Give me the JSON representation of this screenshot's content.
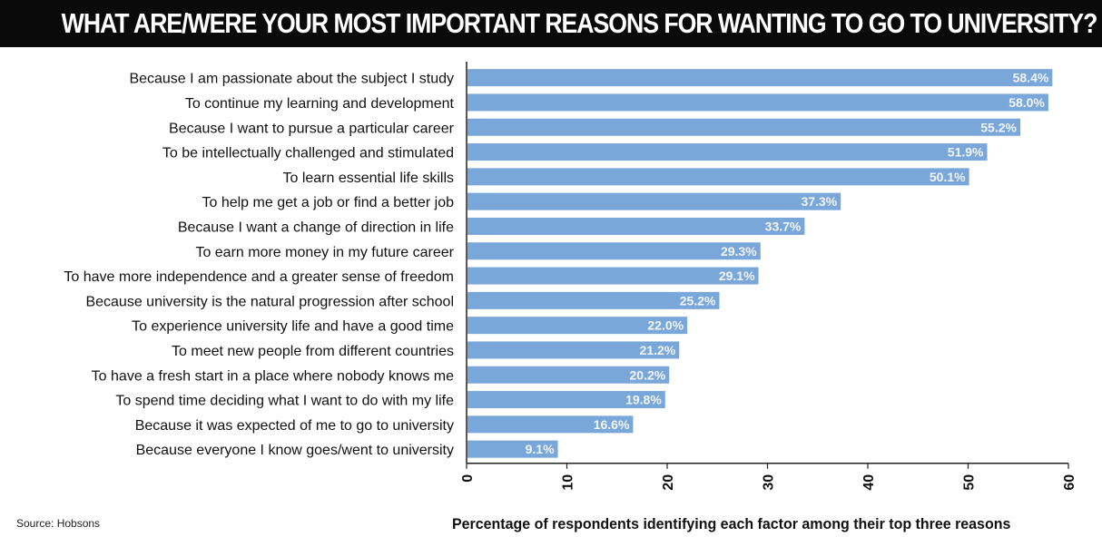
{
  "title": "WHAT ARE/WERE YOUR MOST IMPORTANT REASONS FOR WANTING TO GO TO UNIVERSITY?",
  "source": "Source: Hobsons",
  "colors": {
    "bar": "#7aa7d9",
    "bar_label": "#f2f6fb",
    "title_bg": "#0a0a0a",
    "axis": "#222222"
  },
  "chart_data": {
    "type": "bar",
    "orientation": "horizontal",
    "title": "WHAT ARE/WERE YOUR MOST IMPORTANT REASONS FOR WANTING TO GO TO UNIVERSITY?",
    "xlabel": "Percentage of respondents identifying each factor among their top three reasons",
    "ylabel": "",
    "xlim": [
      0,
      60
    ],
    "xticks": [
      0,
      10,
      20,
      30,
      40,
      50,
      60
    ],
    "grid": false,
    "categories": [
      "Because I am passionate about the subject I study",
      "To continue my learning and development",
      "Because I want to pursue a particular career",
      "To be intellectually challenged and stimulated",
      "To learn essential life skills",
      "To help me get a job or find a better job",
      "Because I want a change of direction in life",
      "To earn more money in my future career",
      "To have more independence and a greater sense of freedom",
      "Because university is the natural progression after school",
      "To experience university life and have a good time",
      "To meet new people from different countries",
      "To have a fresh start in a place where nobody knows me",
      "To spend time deciding what I want to do with my life",
      "Because it was expected of me to go to university",
      "Because everyone I know goes/went to university"
    ],
    "values": [
      58.4,
      58.0,
      55.2,
      51.9,
      50.1,
      37.3,
      33.7,
      29.3,
      29.1,
      25.2,
      22.0,
      21.2,
      20.2,
      19.8,
      16.6,
      9.1
    ],
    "labels": [
      "58.4%",
      "58.0%",
      "55.2%",
      "51.9%",
      "50.1%",
      "37.3%",
      "33.7%",
      "29.3%",
      "29.1%",
      "25.2%",
      "22.0%",
      "21.2%",
      "20.2%",
      "19.8%",
      "16.6%",
      "9.1%"
    ]
  }
}
